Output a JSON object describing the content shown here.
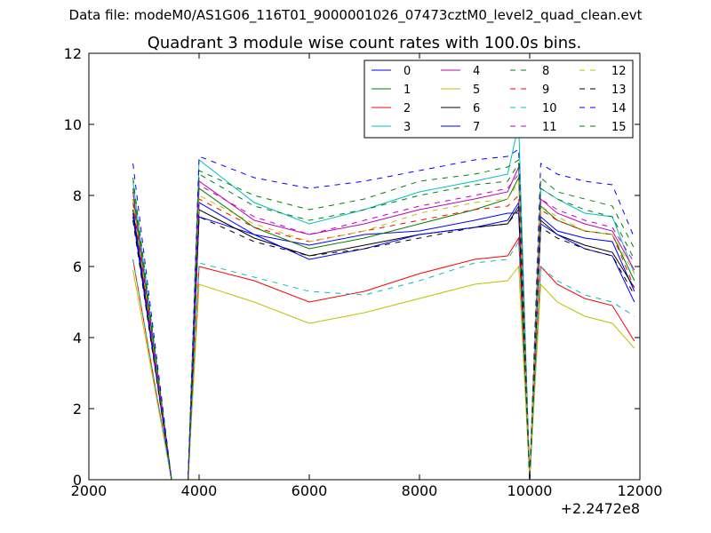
{
  "window": {
    "suptitle": "Data file: modeM0/AS1G06_116T01_9000001026_07473cztM0_level2_quad_clean.evt"
  },
  "chart_data": {
    "type": "line",
    "title": "Quadrant 3 module wise count rates with 100.0s bins.",
    "xlabel": "",
    "ylabel": "",
    "x_offset_label": "+2.2472e8",
    "xlim": [
      2000,
      12000
    ],
    "ylim": [
      0,
      12
    ],
    "xticks": [
      2000,
      4000,
      6000,
      8000,
      10000,
      12000
    ],
    "yticks": [
      0,
      2,
      4,
      6,
      8,
      10,
      12
    ],
    "grid": false,
    "legend_position": "top-right",
    "legend_columns": 4,
    "x": [
      2800,
      3500,
      3800,
      4000,
      5000,
      6000,
      7000,
      8000,
      9000,
      9600,
      9800,
      10000,
      10200,
      10500,
      11000,
      11500,
      11900
    ],
    "series": [
      {
        "name": "0",
        "color": "#0000ff",
        "dash": "solid",
        "values": [
          7.4,
          0,
          0,
          7.4,
          6.9,
          6.6,
          6.9,
          7.0,
          7.3,
          7.5,
          7.5,
          0,
          7.4,
          7.0,
          6.8,
          6.7,
          5.3
        ]
      },
      {
        "name": "1",
        "color": "#008000",
        "dash": "solid",
        "values": [
          7.9,
          0,
          0,
          8.2,
          7.1,
          6.5,
          6.8,
          7.2,
          7.6,
          7.9,
          8.5,
          0,
          7.7,
          7.3,
          7.0,
          6.9,
          5.6
        ]
      },
      {
        "name": "2",
        "color": "#ff0000",
        "dash": "solid",
        "values": [
          6.2,
          0,
          0,
          6.0,
          5.6,
          5.0,
          5.3,
          5.8,
          6.2,
          6.3,
          6.8,
          0,
          6.0,
          5.5,
          5.1,
          4.9,
          3.9
        ]
      },
      {
        "name": "3",
        "color": "#00bfbf",
        "dash": "solid",
        "values": [
          8.4,
          0,
          0,
          9.0,
          7.8,
          7.2,
          7.6,
          8.1,
          8.4,
          8.6,
          10.0,
          0,
          8.2,
          7.9,
          7.5,
          7.4,
          5.8
        ]
      },
      {
        "name": "4",
        "color": "#bf00bf",
        "dash": "solid",
        "values": [
          8.1,
          0,
          0,
          8.4,
          7.3,
          6.9,
          7.2,
          7.6,
          7.9,
          8.1,
          8.8,
          0,
          7.9,
          7.5,
          7.2,
          7.0,
          5.9
        ]
      },
      {
        "name": "5",
        "color": "#bfbf00",
        "dash": "solid",
        "values": [
          5.9,
          0,
          0,
          5.5,
          5.0,
          4.4,
          4.7,
          5.1,
          5.5,
          5.6,
          6.0,
          0,
          5.5,
          5.0,
          4.6,
          4.4,
          3.7
        ]
      },
      {
        "name": "6",
        "color": "#000000",
        "dash": "solid",
        "values": [
          7.6,
          0,
          0,
          7.6,
          6.8,
          6.3,
          6.6,
          6.9,
          7.1,
          7.2,
          7.7,
          0,
          7.3,
          6.9,
          6.6,
          6.4,
          5.4
        ]
      },
      {
        "name": "7",
        "color": "#0000ff",
        "dash": "solid",
        "values": [
          7.5,
          0,
          0,
          7.8,
          6.9,
          6.2,
          6.5,
          6.9,
          7.1,
          7.3,
          7.8,
          0,
          7.2,
          6.9,
          6.5,
          6.3,
          5.0
        ]
      },
      {
        "name": "8",
        "color": "#008000",
        "dash": "dashed",
        "values": [
          8.5,
          0,
          0,
          8.7,
          8.0,
          7.6,
          7.9,
          8.4,
          8.6,
          8.8,
          9.0,
          0,
          8.5,
          8.1,
          7.9,
          7.7,
          6.5
        ]
      },
      {
        "name": "9",
        "color": "#ff0000",
        "dash": "dashed",
        "values": [
          7.8,
          0,
          0,
          7.9,
          7.1,
          6.7,
          7.0,
          7.3,
          7.6,
          7.7,
          8.0,
          0,
          7.6,
          7.3,
          7.0,
          6.9,
          5.4
        ]
      },
      {
        "name": "10",
        "color": "#00bfbf",
        "dash": "dashed",
        "values": [
          6.2,
          0,
          0,
          6.1,
          5.7,
          5.3,
          5.2,
          5.6,
          6.1,
          6.2,
          6.7,
          0,
          6.0,
          5.6,
          5.2,
          5.0,
          4.6
        ]
      },
      {
        "name": "11",
        "color": "#bf00bf",
        "dash": "dashed",
        "values": [
          8.1,
          0,
          0,
          8.3,
          7.4,
          6.9,
          7.3,
          7.7,
          8.0,
          8.2,
          8.6,
          0,
          7.9,
          7.6,
          7.3,
          7.1,
          6.1
        ]
      },
      {
        "name": "12",
        "color": "#bfbf00",
        "dash": "dashed",
        "values": [
          7.9,
          0,
          0,
          8.0,
          7.2,
          6.7,
          7.0,
          7.5,
          7.8,
          7.9,
          8.4,
          0,
          7.7,
          7.4,
          7.0,
          6.9,
          5.8
        ]
      },
      {
        "name": "13",
        "color": "#000000",
        "dash": "dashed",
        "values": [
          7.3,
          0,
          0,
          7.4,
          6.7,
          6.3,
          6.5,
          6.8,
          7.1,
          7.2,
          7.6,
          0,
          7.1,
          6.8,
          6.5,
          6.3,
          5.2
        ]
      },
      {
        "name": "14",
        "color": "#0000ff",
        "dash": "dashed",
        "values": [
          8.9,
          0,
          0,
          9.1,
          8.5,
          8.2,
          8.4,
          8.7,
          9.0,
          9.1,
          9.3,
          0,
          8.9,
          8.6,
          8.4,
          8.3,
          6.8
        ]
      },
      {
        "name": "15",
        "color": "#008000",
        "dash": "dashed",
        "values": [
          8.2,
          0,
          0,
          8.6,
          7.7,
          7.3,
          7.6,
          8.0,
          8.3,
          8.4,
          8.9,
          0,
          8.2,
          7.9,
          7.6,
          7.4,
          6.2
        ]
      }
    ]
  }
}
